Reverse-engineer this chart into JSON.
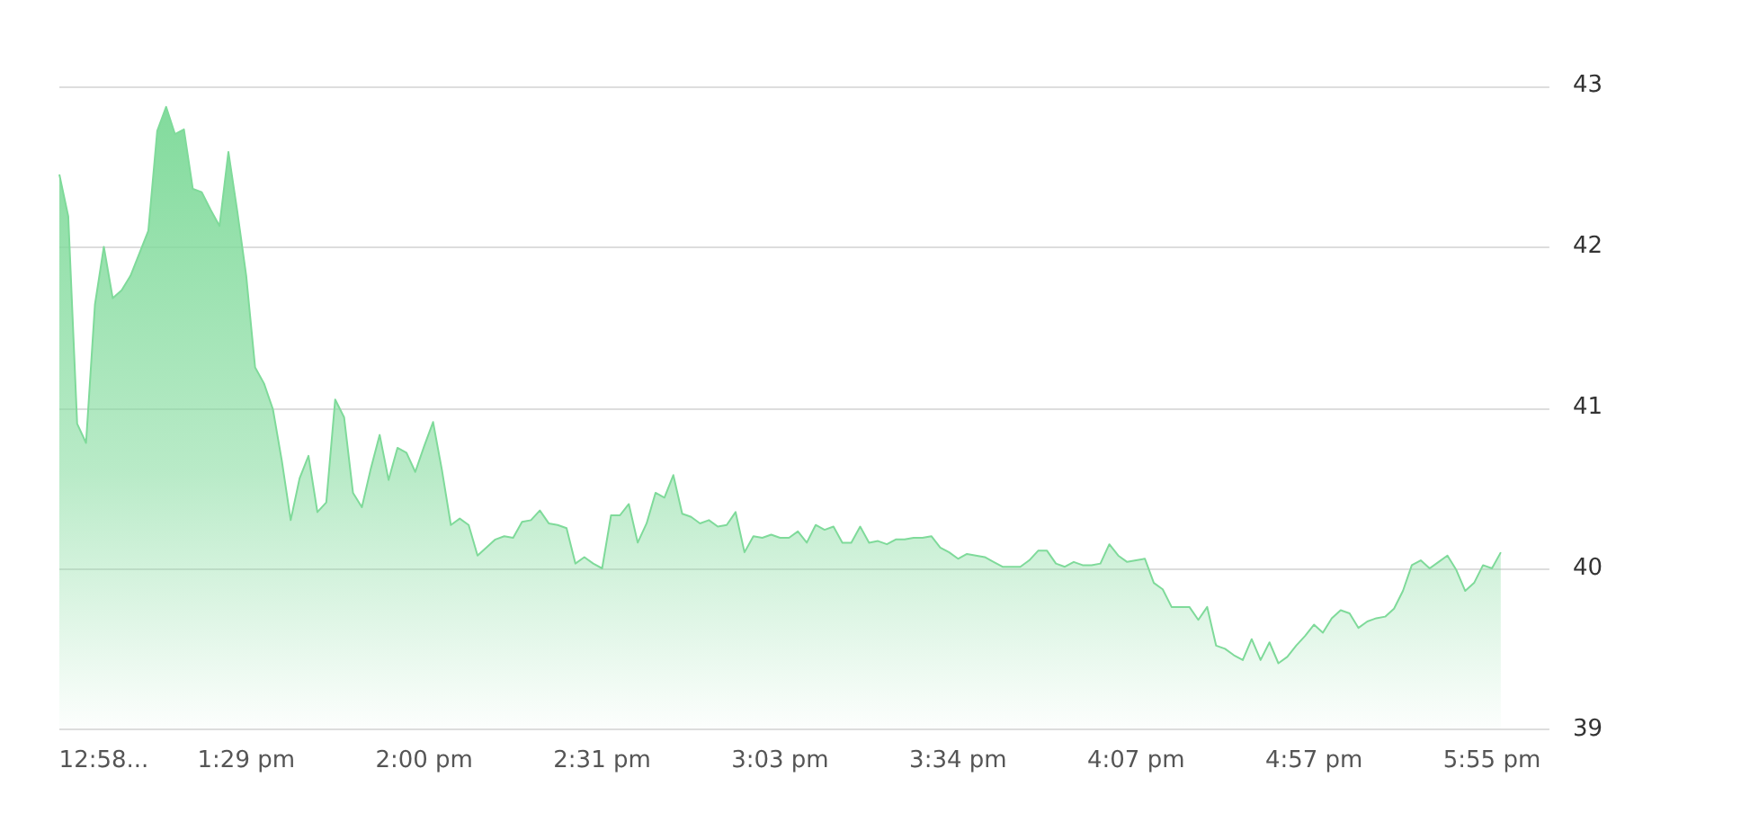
{
  "chart_data": {
    "type": "area",
    "categories": [
      null,
      null,
      null,
      null,
      null,
      "12:58...",
      null,
      null,
      null,
      null,
      null,
      null,
      null,
      null,
      null,
      null,
      null,
      null,
      null,
      null,
      null,
      "1:29 pm",
      null,
      null,
      null,
      null,
      null,
      null,
      null,
      null,
      null,
      null,
      null,
      null,
      null,
      null,
      null,
      null,
      null,
      null,
      null,
      "2:00 pm",
      null,
      null,
      null,
      null,
      null,
      null,
      null,
      null,
      null,
      null,
      null,
      null,
      null,
      null,
      null,
      null,
      null,
      null,
      null,
      "2:31 pm",
      null,
      null,
      null,
      null,
      null,
      null,
      null,
      null,
      null,
      null,
      null,
      null,
      null,
      null,
      null,
      null,
      null,
      null,
      null,
      "3:03 pm",
      null,
      null,
      null,
      null,
      null,
      null,
      null,
      null,
      null,
      null,
      null,
      null,
      null,
      null,
      null,
      null,
      null,
      null,
      null,
      "3:34 pm",
      null,
      null,
      null,
      null,
      null,
      null,
      null,
      null,
      null,
      null,
      null,
      null,
      null,
      null,
      null,
      null,
      null,
      null,
      null,
      "4:07 pm",
      null,
      null,
      null,
      null,
      null,
      null,
      null,
      null,
      null,
      null,
      null,
      null,
      null,
      null,
      null,
      null,
      null,
      null,
      null,
      "4:57 pm",
      null,
      null,
      null,
      null,
      null,
      null,
      null,
      null,
      null,
      null,
      null,
      null,
      null,
      null,
      null,
      null,
      null,
      null,
      null,
      "5:55 pm",
      null
    ],
    "series": [
      {
        "color": "#7fda9a",
        "values": [
          42.45,
          42.19,
          40.9,
          40.78,
          41.64,
          42.0,
          41.68,
          41.73,
          41.82,
          41.96,
          42.1,
          42.72,
          42.87,
          42.7,
          42.73,
          42.36,
          42.34,
          42.23,
          42.13,
          42.59,
          42.22,
          41.82,
          41.25,
          41.15,
          40.99,
          40.67,
          40.3,
          40.56,
          40.7,
          40.35,
          40.41,
          41.05,
          40.94,
          40.47,
          40.38,
          40.62,
          40.83,
          40.55,
          40.75,
          40.72,
          40.6,
          40.76,
          40.91,
          40.61,
          40.27,
          40.31,
          40.27,
          40.08,
          40.13,
          40.18,
          40.2,
          40.19,
          40.29,
          40.3,
          40.36,
          40.28,
          40.27,
          40.25,
          40.03,
          40.07,
          40.03,
          40.0,
          40.33,
          40.33,
          40.4,
          40.16,
          40.28,
          40.47,
          40.44,
          40.58,
          40.34,
          40.32,
          40.28,
          40.3,
          40.26,
          40.27,
          40.35,
          40.1,
          40.2,
          40.19,
          40.21,
          40.19,
          40.19,
          40.23,
          40.16,
          40.27,
          40.24,
          40.26,
          40.16,
          40.16,
          40.26,
          40.16,
          40.17,
          40.15,
          40.18,
          40.18,
          40.19,
          40.19,
          40.2,
          40.13,
          40.1,
          40.06,
          40.09,
          40.08,
          40.07,
          40.04,
          40.01,
          40.01,
          40.01,
          40.05,
          40.11,
          40.11,
          40.03,
          40.01,
          40.04,
          40.02,
          40.02,
          40.03,
          40.15,
          40.08,
          40.04,
          40.05,
          40.06,
          39.91,
          39.87,
          39.76,
          39.76,
          39.76,
          39.68,
          39.76,
          39.52,
          39.5,
          39.46,
          39.43,
          39.56,
          39.43,
          39.54,
          39.41,
          39.45,
          39.52,
          39.58,
          39.65,
          39.6,
          39.69,
          39.74,
          39.72,
          39.63,
          39.67,
          39.69,
          39.7,
          39.75,
          39.86,
          40.02,
          40.05,
          40.0,
          40.04,
          40.08,
          39.99,
          39.86,
          39.91,
          40.02,
          40.0,
          40.1
        ]
      }
    ],
    "ylim": [
      39,
      43
    ],
    "yticks": [
      39,
      40,
      41,
      42,
      43
    ],
    "grid": "y",
    "legend": false
  }
}
